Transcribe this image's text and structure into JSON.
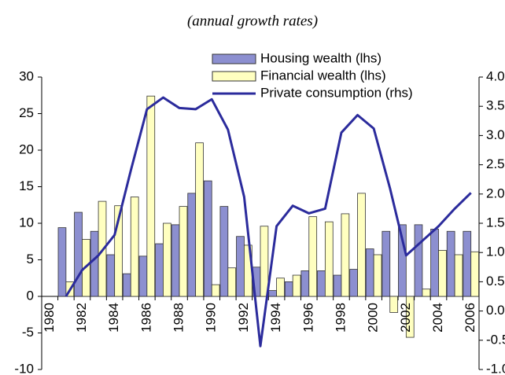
{
  "chart_data": {
    "type": "bar-line",
    "subtitle": "(annual growth rates)",
    "categories": [
      "1980",
      null,
      "1982",
      null,
      "1984",
      null,
      "1986",
      null,
      "1988",
      null,
      "1990",
      null,
      "1992",
      null,
      "1994",
      null,
      "1996",
      null,
      "1998",
      null,
      "2000",
      null,
      "2002",
      null,
      "2004",
      null,
      "2006"
    ],
    "series": [
      {
        "name": "Housing wealth (lhs)",
        "type": "bar",
        "color": "#8c8fd0",
        "values": [
          null,
          9.4,
          11.5,
          8.9,
          5.7,
          3.1,
          5.5,
          7.2,
          9.8,
          14.1,
          15.8,
          12.3,
          8.2,
          4.0,
          0.8,
          2.0,
          3.5,
          3.5,
          2.9,
          3.7,
          6.5,
          8.9,
          9.8,
          9.8,
          9.2,
          8.9,
          8.9
        ]
      },
      {
        "name": "Financial wealth (lhs)",
        "type": "bar",
        "color": "#ffffc0",
        "values": [
          null,
          2.0,
          7.8,
          13.0,
          12.4,
          13.6,
          27.4,
          10.0,
          12.3,
          21.0,
          1.6,
          3.9,
          7.0,
          9.6,
          2.5,
          2.9,
          10.9,
          10.2,
          11.3,
          14.1,
          5.7,
          -2.2,
          -5.6,
          1.0,
          6.3,
          5.7,
          6.1
        ]
      },
      {
        "name": "Private consumption (rhs)",
        "type": "line",
        "axis": "y2",
        "color": "#2b2b9c",
        "values": [
          null,
          0.25,
          0.7,
          0.95,
          1.3,
          2.4,
          3.45,
          3.65,
          3.47,
          3.45,
          3.62,
          3.1,
          1.95,
          -0.6,
          1.45,
          1.8,
          1.67,
          1.75,
          3.05,
          3.35,
          3.12,
          2.1,
          0.95,
          1.2,
          1.45,
          1.75,
          2.02
        ]
      }
    ],
    "ylim": [
      -10,
      30
    ],
    "yticks": [
      -10,
      -5,
      0,
      5,
      10,
      15,
      20,
      25,
      30
    ],
    "y2lim": [
      -1,
      4
    ],
    "y2ticks": [
      {
        "value": -1,
        "label": "-1.0"
      },
      {
        "value": -0.5,
        "label": "-0.5"
      },
      {
        "value": 0,
        "label": "0.0"
      },
      {
        "value": 0.5,
        "label": "0.5"
      },
      {
        "value": 1,
        "label": "1.0"
      },
      {
        "value": 1.5,
        "label": "1.5"
      },
      {
        "value": 2,
        "label": "2.0"
      },
      {
        "value": 2.5,
        "label": "2.5"
      },
      {
        "value": 3,
        "label": "3.0"
      },
      {
        "value": 3.5,
        "label": "3.5"
      },
      {
        "value": 4,
        "label": "4.0"
      }
    ]
  }
}
